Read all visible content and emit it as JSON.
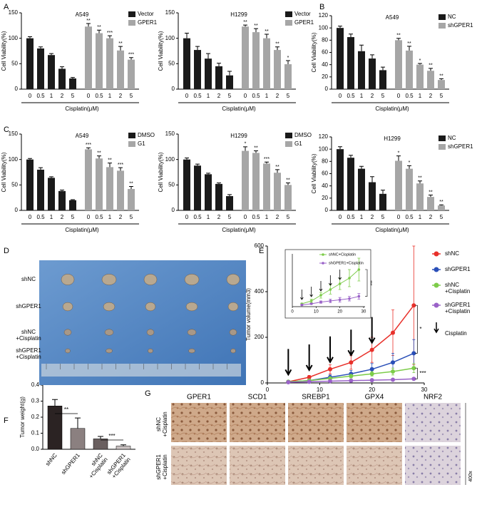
{
  "figure": {
    "panels": [
      "A",
      "B",
      "C",
      "D",
      "E",
      "F",
      "G"
    ]
  },
  "chart_data": [
    {
      "type": "grouped_bar",
      "title": "A549",
      "categories": [
        "0",
        "0.5",
        "1",
        "2",
        "5"
      ],
      "xlabel": "Cisplatin(μM)",
      "ylabel": "Cell Viability(%)",
      "ylim": [
        0,
        150
      ],
      "yticks": [
        0,
        50,
        100,
        150
      ],
      "legend": "upper right",
      "series": [
        {
          "name": "Vector",
          "color": "#1a1a1a",
          "values": [
            100,
            80,
            67,
            40,
            21
          ],
          "errors": [
            3,
            3,
            3,
            4,
            2
          ]
        },
        {
          "name": "GPER1",
          "color": "#a6a6a6",
          "values": [
            123,
            110,
            100,
            76,
            58
          ],
          "errors": [
            6,
            6,
            5,
            8,
            4
          ],
          "significance": [
            "**",
            "**",
            "***",
            "**",
            "***"
          ]
        }
      ]
    },
    {
      "type": "grouped_bar",
      "title": "H1299",
      "categories": [
        "0",
        "0.5",
        "1",
        "2",
        "5"
      ],
      "xlabel": "Cisplatin(μM)",
      "ylabel": "Cell Viability(%)",
      "ylim": [
        0,
        150
      ],
      "yticks": [
        0,
        50,
        100,
        150
      ],
      "legend": "upper right",
      "series": [
        {
          "name": "Vector",
          "color": "#1a1a1a",
          "values": [
            100,
            77,
            60,
            45,
            27
          ],
          "errors": [
            10,
            7,
            10,
            6,
            8
          ]
        },
        {
          "name": "GPER1",
          "color": "#a6a6a6",
          "values": [
            123,
            112,
            100,
            77,
            49
          ],
          "errors": [
            3,
            7,
            8,
            6,
            7
          ],
          "significance": [
            "**",
            "**",
            "**",
            "**",
            "*"
          ]
        }
      ]
    },
    {
      "type": "grouped_bar",
      "title": "A549",
      "categories": [
        "0",
        "0.5",
        "1",
        "2",
        "5"
      ],
      "xlabel": "Cisplatin(μM)",
      "ylabel": "Cell Viability(%)",
      "ylim": [
        0,
        120
      ],
      "yticks": [
        0,
        20,
        40,
        60,
        80,
        100,
        120
      ],
      "legend": "upper right",
      "series": [
        {
          "name": "NC",
          "color": "#1a1a1a",
          "values": [
            100,
            85,
            62,
            50,
            31
          ],
          "errors": [
            3,
            5,
            10,
            6,
            5
          ]
        },
        {
          "name": "shGPER1",
          "color": "#a6a6a6",
          "values": [
            80,
            63,
            40,
            30,
            15
          ],
          "errors": [
            3,
            7,
            2,
            4,
            2
          ],
          "significance": [
            "**",
            "**",
            "*",
            "**",
            "**"
          ]
        }
      ]
    },
    {
      "type": "grouped_bar",
      "title": "A549",
      "categories": [
        "0",
        "0.5",
        "1",
        "2",
        "5"
      ],
      "xlabel": "Cisplatin(μM)",
      "ylabel": "Cell Viability(%)",
      "ylim": [
        0,
        150
      ],
      "yticks": [
        0,
        50,
        100,
        150
      ],
      "legend": "upper right",
      "series": [
        {
          "name": "DMSO",
          "color": "#1a1a1a",
          "values": [
            100,
            80,
            64,
            38,
            20
          ],
          "errors": [
            2,
            4,
            2,
            2,
            1
          ]
        },
        {
          "name": "G1",
          "color": "#a6a6a6",
          "values": [
            120,
            102,
            85,
            78,
            42
          ],
          "errors": [
            3,
            5,
            8,
            6,
            5
          ],
          "significance": [
            "***",
            "**",
            "**",
            "***",
            "**"
          ]
        }
      ]
    },
    {
      "type": "grouped_bar",
      "title": "H1299",
      "categories": [
        "0",
        "0.5",
        "1",
        "2",
        "5"
      ],
      "xlabel": "Cisplatin(μM)",
      "ylabel": "Cell Viability(%)",
      "ylim": [
        0,
        150
      ],
      "yticks": [
        0,
        50,
        100,
        150
      ],
      "legend": "upper right",
      "series": [
        {
          "name": "DMSO",
          "color": "#1a1a1a",
          "values": [
            100,
            88,
            71,
            52,
            28
          ],
          "errors": [
            3,
            3,
            2,
            2,
            3
          ]
        },
        {
          "name": "G1",
          "color": "#a6a6a6",
          "values": [
            117,
            113,
            92,
            74,
            50
          ],
          "errors": [
            8,
            4,
            3,
            6,
            4
          ],
          "significance": [
            "*",
            "**",
            "***",
            "**",
            "**"
          ]
        }
      ]
    },
    {
      "type": "grouped_bar",
      "title": "H1299",
      "categories": [
        "0",
        "0.5",
        "1",
        "2",
        "5"
      ],
      "xlabel": "Cisplatin(μM)",
      "ylabel": "Cell Viability(%)",
      "ylim": [
        0,
        120
      ],
      "yticks": [
        0,
        20,
        40,
        60,
        80,
        100,
        120
      ],
      "legend": "upper right",
      "series": [
        {
          "name": "NC",
          "color": "#1a1a1a",
          "values": [
            100,
            86,
            68,
            46,
            27
          ],
          "errors": [
            4,
            4,
            4,
            9,
            6
          ]
        },
        {
          "name": "shGPER1",
          "color": "#a6a6a6",
          "values": [
            81,
            68,
            44,
            22,
            8
          ],
          "errors": [
            8,
            5,
            4,
            3,
            1
          ],
          "significance": [
            "*",
            "*",
            "**",
            "**",
            "**"
          ]
        }
      ]
    },
    {
      "type": "line",
      "ylabel": "Tumor volume(mm3)",
      "x": [
        4,
        8,
        12,
        16,
        20,
        24,
        28
      ],
      "xlim": [
        0,
        30
      ],
      "xticks": [
        0,
        10,
        20,
        30
      ],
      "ylim": [
        0,
        600
      ],
      "yticks": [
        0,
        200,
        400,
        600
      ],
      "legend": "right",
      "series": [
        {
          "name": "shNC",
          "color": "#e8302a",
          "values": [
            5,
            25,
            60,
            90,
            145,
            220,
            340
          ],
          "errors": [
            2,
            8,
            20,
            30,
            55,
            100,
            260
          ]
        },
        {
          "name": "shGPER1",
          "color": "#2a4fb8",
          "values": [
            5,
            10,
            25,
            40,
            60,
            90,
            130
          ],
          "errors": [
            1,
            4,
            10,
            15,
            25,
            40,
            60
          ]
        },
        {
          "name": "shNC +Cisplatin",
          "color": "#7dcc4a",
          "values": [
            5,
            10,
            20,
            30,
            40,
            50,
            65
          ],
          "errors": [
            1,
            3,
            5,
            8,
            10,
            15,
            20
          ]
        },
        {
          "name": "shGPER1 +Cisplatin",
          "color": "#9a62c8",
          "values": [
            3,
            5,
            8,
            10,
            12,
            14,
            18
          ],
          "errors": [
            1,
            1,
            2,
            3,
            4,
            4,
            5
          ]
        }
      ],
      "annotations": [
        "*",
        "***"
      ],
      "treatment": {
        "label": "Cisplatin",
        "x": [
          4,
          8,
          12,
          16,
          20
        ]
      },
      "inset": {
        "series_names": [
          "shNC+Cisplatin",
          "shGPER1+Cisplatin"
        ],
        "xlim": [
          0,
          30
        ],
        "xticks": [
          0,
          10,
          20,
          30
        ],
        "ylim": [
          0,
          90
        ],
        "annotation": "***"
      }
    },
    {
      "type": "bar",
      "ylabel": "Tumor weight(g)",
      "categories": [
        "shNC",
        "shGPER1",
        "shNC +Cisplatin",
        "shGPER1 +Cisplatin"
      ],
      "values": [
        0.27,
        0.13,
        0.065,
        0.02
      ],
      "errors": [
        0.04,
        0.065,
        0.015,
        0.008
      ],
      "colors": [
        "#2b2323",
        "#8b8080",
        "#6a6060",
        "#c8c0c0"
      ],
      "ylim": [
        0,
        0.4
      ],
      "yticks": [
        {
          "value": 0,
          "label": "0.0"
        },
        0.1,
        0.2,
        0.3,
        0.4
      ],
      "annotations": [
        "**",
        "***"
      ]
    }
  ],
  "photo_d": {
    "rows": [
      "shNC",
      "shGPER1",
      "shNC +Cisplatin",
      "shGPER1 +Cisplatin"
    ]
  },
  "ihc_g": {
    "columns": [
      "GPER1",
      "SCD1",
      "SREBP1",
      "GPX4",
      "NRF2"
    ],
    "rows": [
      "shNC +Cisplatin",
      "shGPER1 +Cisplatin"
    ],
    "magnification": "400x"
  }
}
